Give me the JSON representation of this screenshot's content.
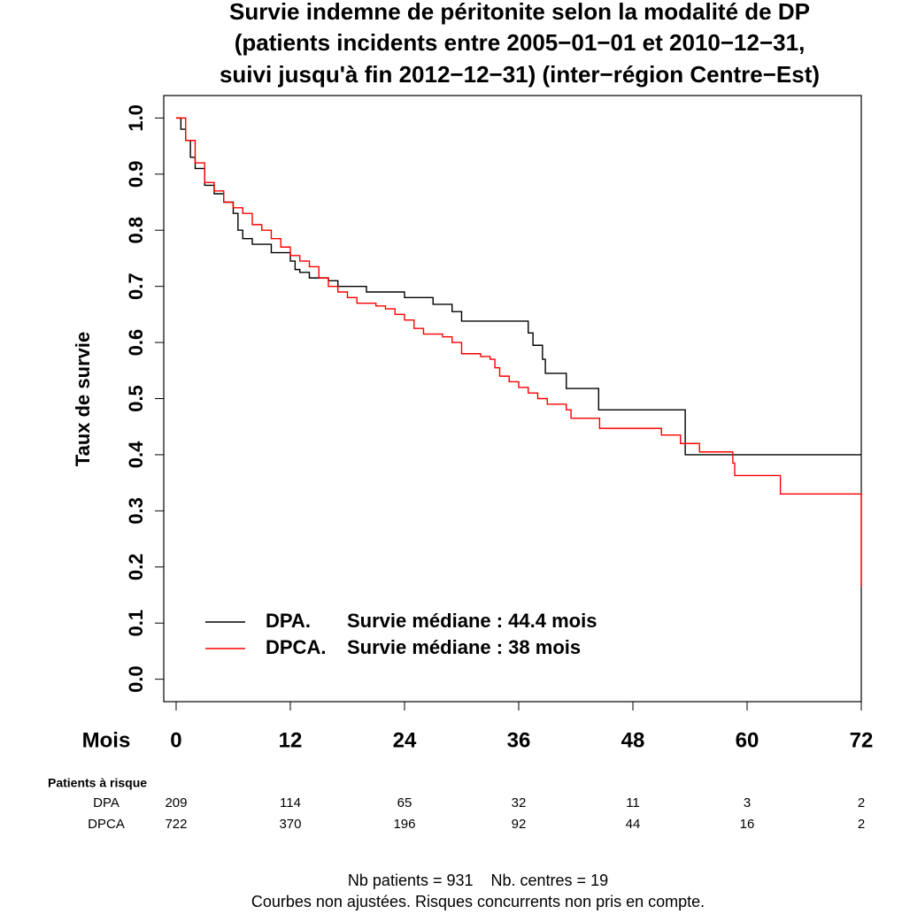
{
  "chart_data": {
    "type": "step",
    "title": [
      "Survie indemne de péritonite selon la modalité de DP",
      "(patients incidents entre 2005−01−01 et 2010−12−31,",
      "suivi jusqu'à fin 2012−12−31) (inter−région Centre−Est)"
    ],
    "y_label": "Taux de survie",
    "x_label": "Mois",
    "xlim": [
      -1.3,
      72
    ],
    "ylim": [
      -0.04,
      1.04
    ],
    "xticks": [
      0,
      12,
      24,
      36,
      48,
      60,
      72
    ],
    "yticks": [
      {
        "value": 0,
        "label": "0.0"
      },
      0.1,
      0.2,
      0.3,
      0.4,
      0.5,
      0.6,
      0.7,
      0.8,
      0.9,
      {
        "value": 1,
        "label": "1.0"
      }
    ],
    "series": [
      {
        "name": "DPA.",
        "legend_text": "Survie médiane : 44.4 mois",
        "color": "#000000",
        "x": [
          0,
          0.5,
          1,
          1.5,
          2,
          3,
          4,
          5,
          6,
          6.5,
          7,
          8,
          10,
          12,
          12.5,
          13,
          14,
          16,
          17,
          20,
          24,
          27,
          29,
          30,
          37,
          37.5,
          38.5,
          38.8,
          41,
          44.4,
          53.5,
          72
        ],
        "values": [
          1.0,
          0.98,
          0.96,
          0.93,
          0.91,
          0.88,
          0.865,
          0.85,
          0.83,
          0.8,
          0.785,
          0.775,
          0.76,
          0.745,
          0.73,
          0.725,
          0.715,
          0.71,
          0.7,
          0.69,
          0.68,
          0.668,
          0.655,
          0.638,
          0.617,
          0.595,
          0.57,
          0.545,
          0.518,
          0.48,
          0.4,
          0.4
        ]
      },
      {
        "name": "DPCA.",
        "legend_text": "Survie médiane : 38 mois",
        "color": "#ff0000",
        "x": [
          0,
          1,
          2,
          3,
          4,
          5,
          6,
          7,
          8,
          9,
          10,
          11,
          12,
          13,
          14,
          15,
          16,
          17,
          18,
          19,
          21,
          22,
          23,
          24,
          25,
          26,
          28,
          29,
          30,
          32,
          33,
          33.5,
          34,
          35,
          36,
          37,
          38,
          39,
          41,
          41.5,
          44.5,
          51,
          53,
          55,
          58.5,
          58.7,
          63.5,
          72,
          72
        ],
        "values": [
          1.0,
          0.96,
          0.92,
          0.885,
          0.87,
          0.85,
          0.84,
          0.83,
          0.81,
          0.8,
          0.785,
          0.77,
          0.755,
          0.745,
          0.735,
          0.715,
          0.7,
          0.69,
          0.68,
          0.67,
          0.665,
          0.66,
          0.65,
          0.64,
          0.625,
          0.615,
          0.61,
          0.6,
          0.58,
          0.575,
          0.57,
          0.555,
          0.54,
          0.53,
          0.52,
          0.51,
          0.5,
          0.49,
          0.48,
          0.465,
          0.447,
          0.435,
          0.42,
          0.405,
          0.385,
          0.363,
          0.33,
          0.33,
          0.165
        ]
      }
    ],
    "risk_table": {
      "title": "Patients à risque",
      "rows": [
        {
          "name": "DPA",
          "values": [
            209,
            114,
            65,
            32,
            11,
            3,
            2
          ]
        },
        {
          "name": "DPCA",
          "values": [
            722,
            370,
            196,
            92,
            44,
            16,
            2
          ]
        }
      ]
    },
    "footer": [
      "Nb patients = 931    Nb. centres = 19",
      "Courbes non ajustées. Risques concurrents non pris en compte."
    ]
  }
}
